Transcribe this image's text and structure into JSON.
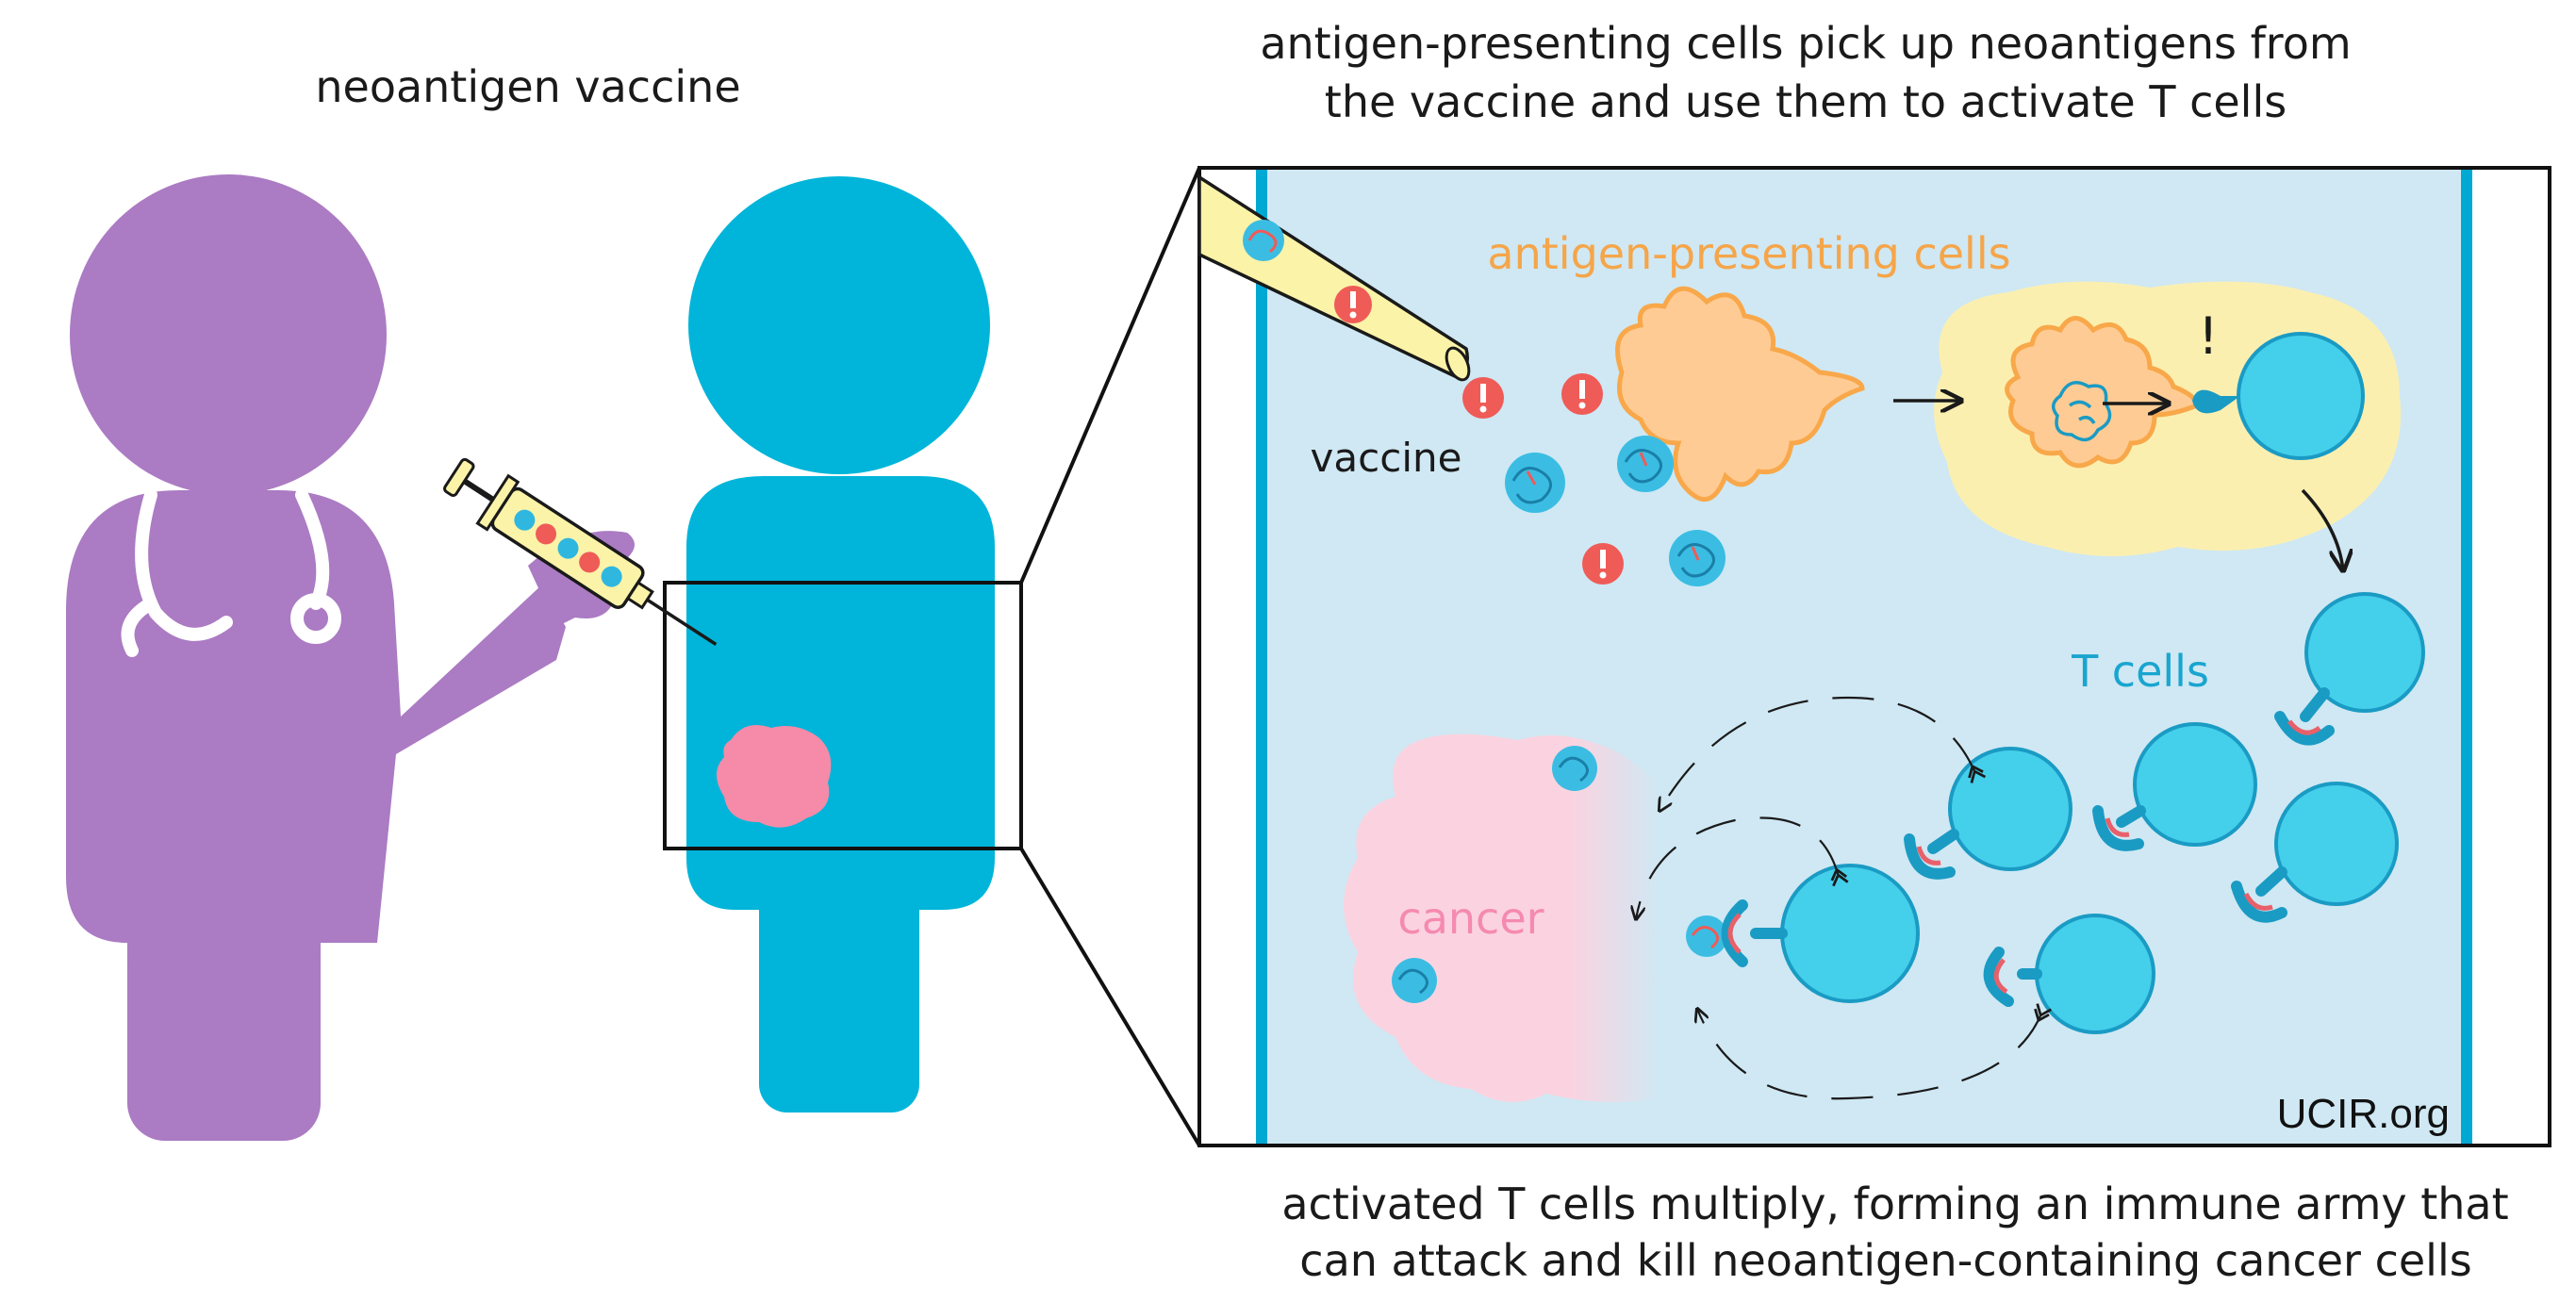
{
  "title": "neoantigen vaccine",
  "top_caption": {
    "line1": "antigen-presenting cells pick up neoantigens from",
    "line2": "the vaccine and use them to activate T cells"
  },
  "bottom_caption": {
    "line1": "activated T cells multiply, forming an immune army that",
    "line2": "can attack and kill neoantigen-containing cancer cells"
  },
  "labels": {
    "antigen_presenting_cells": "antigen-presenting cells",
    "vaccine": "vaccine",
    "t_cells": "T cells",
    "cancer": "cancer",
    "alert_mark": "!",
    "credit": "UCIR.org"
  },
  "colors": {
    "doctor": "#ab7bc3",
    "patient": "#00b5d9",
    "tumor": "#f68aa9",
    "panel_bg": "#cfe8f3",
    "panel_border": "#111111",
    "vessel_wall": "#00a8d4",
    "apc_fill": "#ffcb94",
    "apc_outline": "#f8a84a",
    "apc_label": "#f5a54a",
    "apc_zone": "#fbefb0",
    "t_cell": "#44cfeb",
    "t_cell_outline": "#1a9bc4",
    "t_cell_label": "#19a5cf",
    "cancer_zone": "#fbd3e0",
    "cancer_label": "#f58ab0",
    "antigen_alert": "#ef5b57",
    "receptor_tip": "#e8606a",
    "needle_fill": "#fbf3a8",
    "arrow": "#1a1a1a"
  },
  "icons": [
    "doctor-silhouette",
    "stethoscope-icon",
    "patient-silhouette",
    "syringe-icon",
    "needle-icon",
    "neoantigen-blob-icon",
    "alert-icon",
    "t-cell-icon",
    "arrow-icon"
  ]
}
